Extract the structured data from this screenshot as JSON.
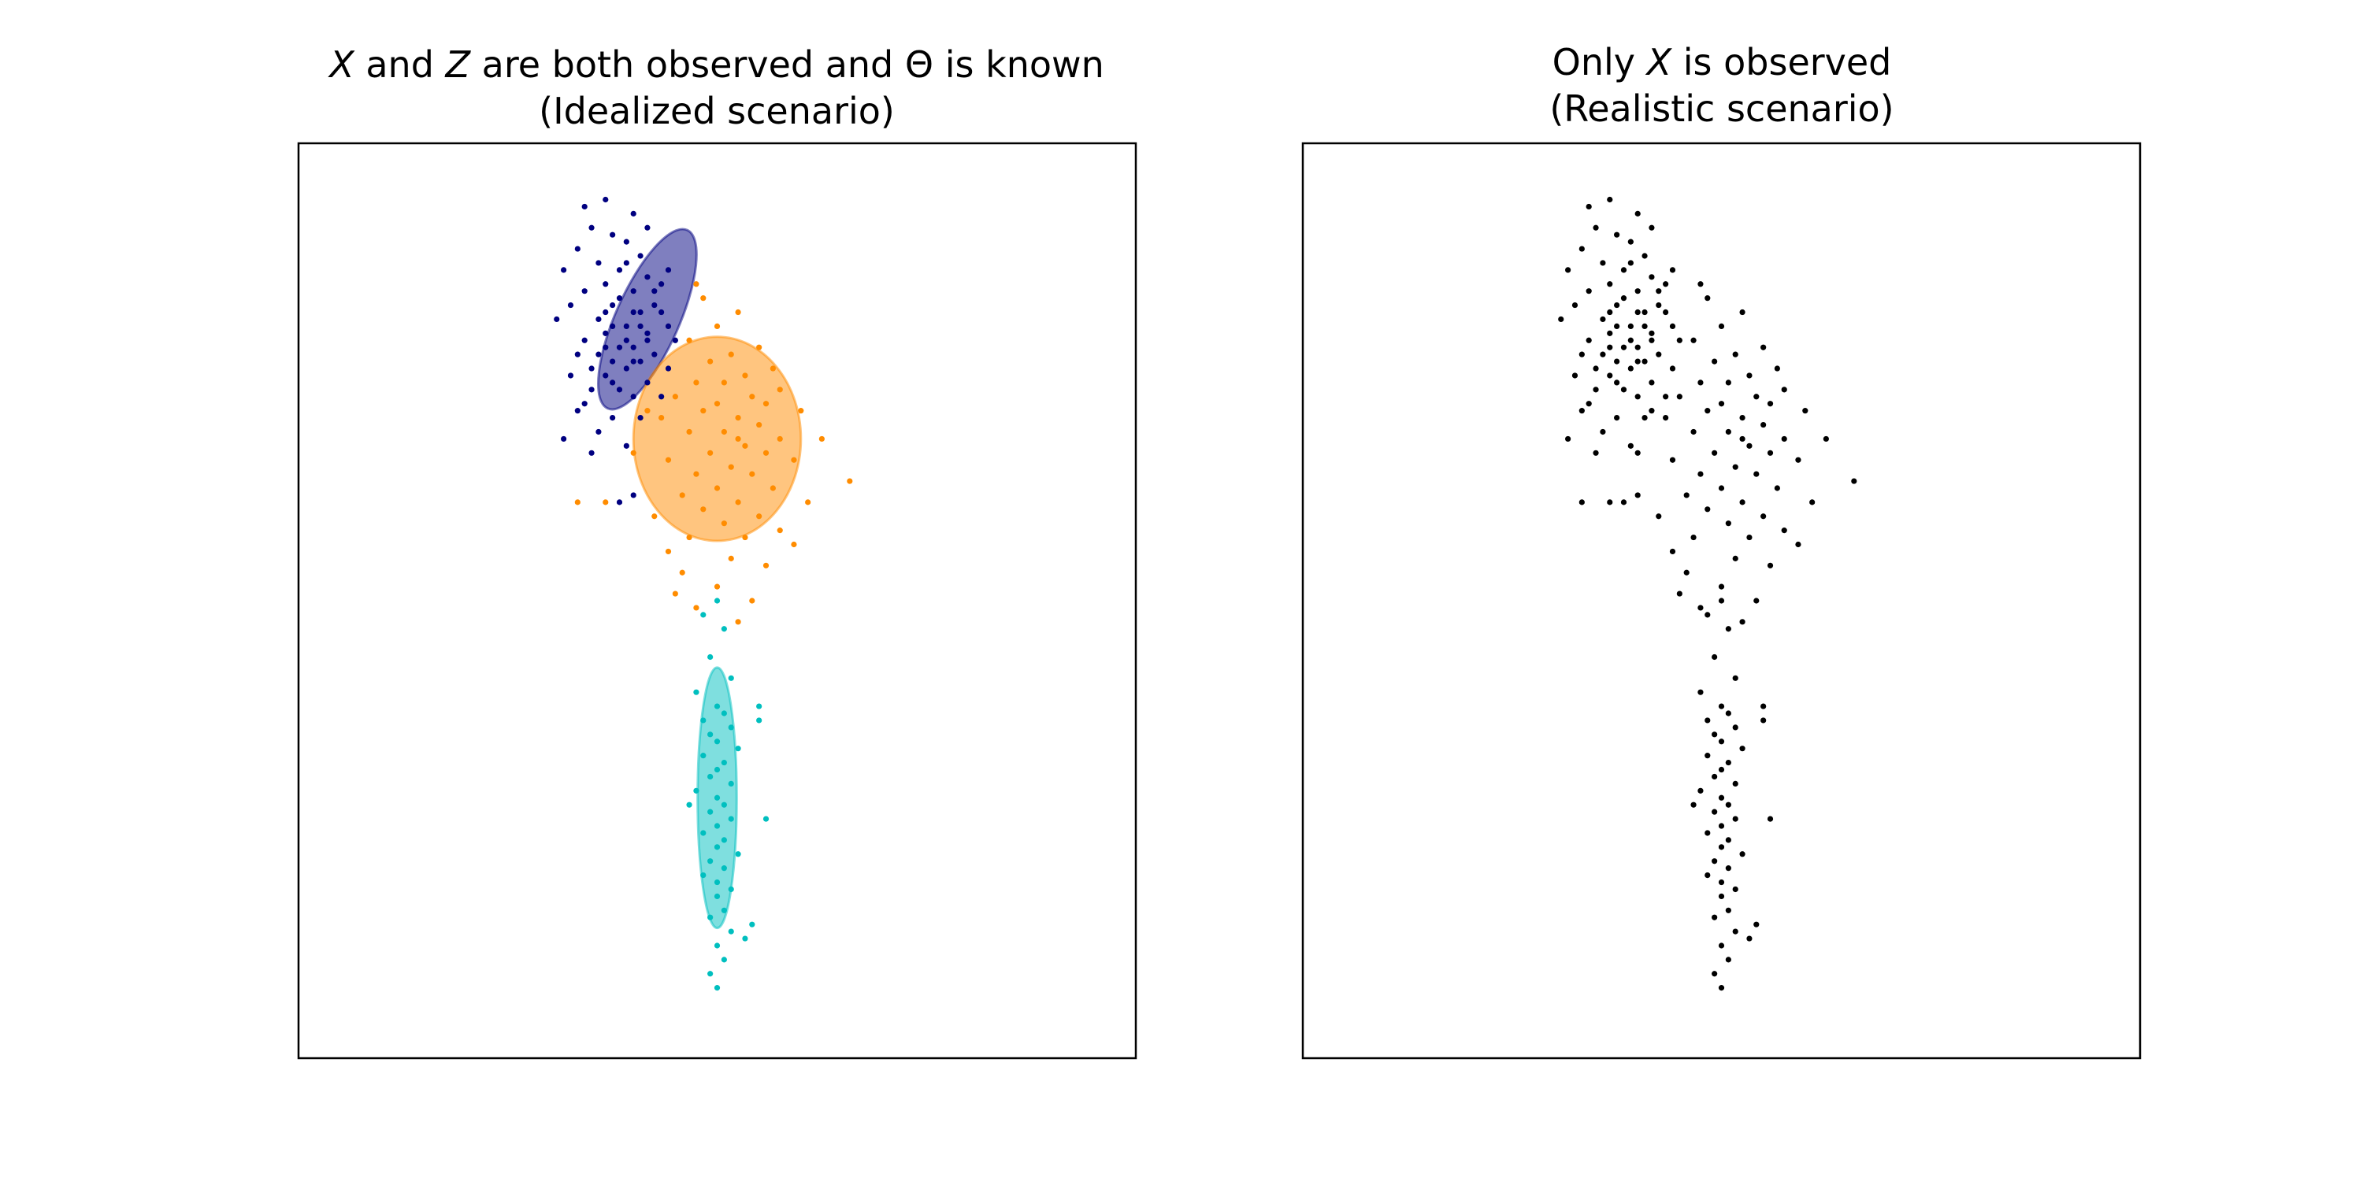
{
  "figure": {
    "panels": [
      {
        "title_line1_parts": [
          "X",
          " and ",
          "Z",
          " are both observed and Θ is known"
        ],
        "title_line2": "(Idealized scenario)"
      },
      {
        "title_line1_parts": [
          "Only ",
          "X",
          " is observed"
        ],
        "title_line2": "(Realistic scenario)"
      }
    ]
  },
  "chart_data": [
    {
      "type": "scatter",
      "title": "X and Z are both observed and Θ is known (Idealized scenario)",
      "xlabel": "",
      "ylabel": "",
      "xlim": [
        -6,
        6
      ],
      "ylim": [
        -8,
        5
      ],
      "ticks": "none",
      "grid": false,
      "legend": "none",
      "series": [
        {
          "color": "#000080",
          "points": [
            [
              -1.9,
              4.1
            ],
            [
              -1.6,
              4.2
            ],
            [
              -1.2,
              4.0
            ],
            [
              -1.8,
              3.8
            ],
            [
              -2.0,
              3.5
            ],
            [
              -1.5,
              3.7
            ],
            [
              -1.3,
              3.6
            ],
            [
              -1.1,
              3.4
            ],
            [
              -1.7,
              3.3
            ],
            [
              -2.2,
              3.2
            ],
            [
              -1.4,
              3.2
            ],
            [
              -1.0,
              3.1
            ],
            [
              -0.8,
              3.0
            ],
            [
              -1.6,
              3.0
            ],
            [
              -1.9,
              2.9
            ],
            [
              -1.2,
              2.9
            ],
            [
              -2.1,
              2.7
            ],
            [
              -1.5,
              2.7
            ],
            [
              -1.1,
              2.6
            ],
            [
              -0.9,
              2.7
            ],
            [
              -1.7,
              2.5
            ],
            [
              -2.3,
              2.5
            ],
            [
              -1.3,
              2.4
            ],
            [
              -0.7,
              2.4
            ],
            [
              -1.6,
              2.3
            ],
            [
              -1.0,
              2.3
            ],
            [
              -1.9,
              2.2
            ],
            [
              -0.6,
              2.2
            ],
            [
              -1.4,
              2.1
            ],
            [
              -1.2,
              2.1
            ],
            [
              -2.0,
              2.0
            ],
            [
              -1.7,
              2.0
            ],
            [
              -0.9,
              2.0
            ],
            [
              -1.5,
              1.9
            ],
            [
              -1.1,
              1.9
            ],
            [
              -1.8,
              1.8
            ],
            [
              -1.3,
              1.8
            ],
            [
              -0.7,
              1.8
            ],
            [
              -2.1,
              1.7
            ],
            [
              -1.6,
              1.7
            ],
            [
              -1.0,
              1.6
            ],
            [
              -1.4,
              1.5
            ],
            [
              -1.8,
              1.5
            ],
            [
              -1.2,
              1.4
            ],
            [
              -0.8,
              1.4
            ],
            [
              -2.0,
              1.2
            ],
            [
              -1.5,
              1.1
            ],
            [
              -1.1,
              1.1
            ],
            [
              -1.7,
              0.9
            ],
            [
              -2.2,
              0.8
            ],
            [
              -1.3,
              0.7
            ],
            [
              -1.8,
              0.6
            ],
            [
              -1.2,
              0.0
            ],
            [
              -1.4,
              -0.1
            ],
            [
              -1.0,
              3.8
            ],
            [
              -0.9,
              2.9
            ],
            [
              -1.3,
              3.3
            ],
            [
              -1.6,
              2.6
            ],
            [
              -1.5,
              2.4
            ],
            [
              -1.2,
              2.6
            ],
            [
              -1.4,
              2.8
            ],
            [
              -1.1,
              2.4
            ],
            [
              -1.3,
              2.2
            ],
            [
              -1.0,
              2.2
            ],
            [
              -1.6,
              2.1
            ],
            [
              -1.2,
              1.9
            ],
            [
              -1.5,
              1.6
            ],
            [
              -1.9,
              1.3
            ],
            [
              -0.8,
              2.6
            ],
            [
              -0.7,
              3.2
            ]
          ]
        },
        {
          "color": "#FF8C00",
          "points": [
            [
              -0.3,
              3.0
            ],
            [
              -0.2,
              2.8
            ],
            [
              0.3,
              2.6
            ],
            [
              0.0,
              2.4
            ],
            [
              -0.4,
              2.2
            ],
            [
              0.6,
              2.1
            ],
            [
              0.2,
              2.0
            ],
            [
              -0.1,
              1.9
            ],
            [
              0.8,
              1.8
            ],
            [
              0.4,
              1.7
            ],
            [
              -0.3,
              1.6
            ],
            [
              0.1,
              1.6
            ],
            [
              0.9,
              1.5
            ],
            [
              0.5,
              1.4
            ],
            [
              -0.6,
              1.4
            ],
            [
              0.0,
              1.3
            ],
            [
              0.7,
              1.3
            ],
            [
              -0.2,
              1.2
            ],
            [
              1.2,
              1.2
            ],
            [
              0.3,
              1.1
            ],
            [
              -0.8,
              1.1
            ],
            [
              0.6,
              1.0
            ],
            [
              0.1,
              0.9
            ],
            [
              -0.4,
              0.9
            ],
            [
              0.9,
              0.8
            ],
            [
              1.5,
              0.8
            ],
            [
              0.4,
              0.7
            ],
            [
              -0.1,
              0.6
            ],
            [
              0.7,
              0.6
            ],
            [
              -0.7,
              0.5
            ],
            [
              1.1,
              0.5
            ],
            [
              0.2,
              0.4
            ],
            [
              -0.3,
              0.3
            ],
            [
              0.5,
              0.3
            ],
            [
              1.9,
              0.2
            ],
            [
              0.0,
              0.1
            ],
            [
              0.8,
              0.1
            ],
            [
              -0.5,
              0.0
            ],
            [
              0.3,
              -0.1
            ],
            [
              1.3,
              -0.1
            ],
            [
              -0.2,
              -0.2
            ],
            [
              0.6,
              -0.3
            ],
            [
              -0.9,
              -0.3
            ],
            [
              0.1,
              -0.4
            ],
            [
              0.9,
              -0.5
            ],
            [
              -0.4,
              -0.6
            ],
            [
              0.4,
              -0.6
            ],
            [
              1.1,
              -0.7
            ],
            [
              -0.7,
              -0.8
            ],
            [
              0.2,
              -0.9
            ],
            [
              0.7,
              -1.0
            ],
            [
              -0.5,
              -1.1
            ],
            [
              0.0,
              -1.3
            ],
            [
              0.5,
              -1.5
            ],
            [
              -0.3,
              -1.6
            ],
            [
              0.3,
              -1.8
            ],
            [
              -1.6,
              -0.1
            ],
            [
              -1.0,
              1.2
            ],
            [
              -1.2,
              0.6
            ],
            [
              -2.0,
              -0.1
            ],
            [
              -0.6,
              -1.4
            ],
            [
              0.3,
              0.8
            ]
          ]
        },
        {
          "color": "#00BFBF",
          "points": [
            [
              0.0,
              -1.5
            ],
            [
              -0.2,
              -1.7
            ],
            [
              0.1,
              -1.9
            ],
            [
              -0.1,
              -2.3
            ],
            [
              0.2,
              -2.6
            ],
            [
              -0.3,
              -2.8
            ],
            [
              0.0,
              -3.0
            ],
            [
              0.1,
              -3.1
            ],
            [
              -0.2,
              -3.2
            ],
            [
              0.2,
              -3.3
            ],
            [
              -0.1,
              -3.4
            ],
            [
              0.0,
              -3.5
            ],
            [
              0.3,
              -3.6
            ],
            [
              -0.2,
              -3.7
            ],
            [
              0.1,
              -3.8
            ],
            [
              0.0,
              -3.9
            ],
            [
              -0.1,
              -4.0
            ],
            [
              0.2,
              -4.1
            ],
            [
              -0.3,
              -4.2
            ],
            [
              0.0,
              -4.3
            ],
            [
              0.1,
              -4.4
            ],
            [
              -0.1,
              -4.5
            ],
            [
              0.2,
              -4.6
            ],
            [
              0.0,
              -4.7
            ],
            [
              -0.2,
              -4.8
            ],
            [
              0.1,
              -4.9
            ],
            [
              0.0,
              -5.0
            ],
            [
              0.3,
              -5.1
            ],
            [
              -0.1,
              -5.2
            ],
            [
              0.1,
              -5.3
            ],
            [
              -0.2,
              -5.4
            ],
            [
              0.0,
              -5.5
            ],
            [
              0.2,
              -5.6
            ],
            [
              0.0,
              -5.7
            ],
            [
              0.1,
              -5.9
            ],
            [
              -0.1,
              -6.0
            ],
            [
              0.2,
              -6.2
            ],
            [
              0.0,
              -6.4
            ],
            [
              0.1,
              -6.6
            ],
            [
              -0.1,
              -6.8
            ],
            [
              0.0,
              -7.0
            ],
            [
              0.6,
              -3.0
            ],
            [
              0.6,
              -3.2
            ],
            [
              0.7,
              -4.6
            ],
            [
              -0.4,
              -4.4
            ],
            [
              0.5,
              -6.1
            ],
            [
              0.4,
              -6.3
            ]
          ]
        }
      ],
      "ellipses": [
        {
          "color": "#000080",
          "center": [
            -1.0,
            2.5
          ],
          "rx": 1.4,
          "ry": 0.45,
          "angle_deg": -66
        },
        {
          "color": "#FF8C00",
          "center": [
            0.0,
            0.8
          ],
          "rx": 1.2,
          "ry": 1.45,
          "angle_deg": 0
        },
        {
          "color": "#00BFBF",
          "center": [
            0.0,
            -4.3
          ],
          "rx": 0.28,
          "ry": 1.85,
          "angle_deg": 0
        }
      ]
    },
    {
      "type": "scatter",
      "title": "Only X is observed (Realistic scenario)",
      "xlabel": "",
      "ylabel": "",
      "xlim": [
        -6,
        6
      ],
      "ylim": [
        -8,
        5
      ],
      "ticks": "none",
      "grid": false,
      "legend": "none",
      "series": [
        {
          "color": "#000000",
          "points": "union of the three colored series in the left panel"
        }
      ]
    }
  ]
}
